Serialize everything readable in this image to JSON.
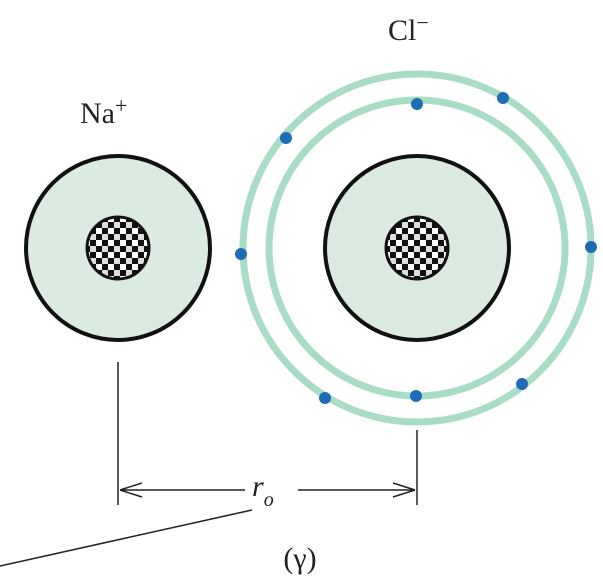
{
  "na_ion": {
    "symbol": "Na",
    "charge": "+"
  },
  "cl_ion": {
    "symbol": "Cl",
    "charge": "−"
  },
  "distance": {
    "symbol": "r",
    "subscript": "o"
  },
  "caption": "(γ)"
}
